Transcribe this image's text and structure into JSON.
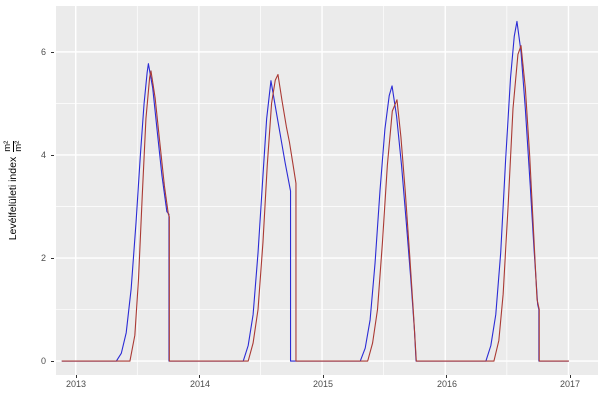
{
  "figure": {
    "background": "#ffffff",
    "panel_background": "#EBEBEB",
    "grid_color": "#ffffff",
    "tick_label_color": "#4D4D4D",
    "axis_title_color": "#000000"
  },
  "y_axis": {
    "title": "Levélfelületi index",
    "unit_numerator": "m²",
    "unit_denominator": "m²",
    "tick_labels": [
      "6",
      "4",
      "2",
      "0"
    ]
  },
  "x_axis": {
    "tick_labels": [
      "2013",
      "2014",
      "2015",
      "2016",
      "2017"
    ]
  },
  "chart_data": {
    "type": "line",
    "title": "",
    "xlabel": "",
    "ylabel": "Levélfelületi index m²/m²",
    "x_range": [
      2012.84,
      2017.24
    ],
    "y_range": [
      -0.27,
      6.89
    ],
    "grid": {
      "major_x": [
        2013,
        2014,
        2015,
        2016,
        2017
      ],
      "minor_x": [
        2013.5,
        2014.5,
        2015.5,
        2016.5
      ],
      "major_y": [
        0,
        2,
        4,
        6
      ],
      "minor_y": [
        1,
        3,
        5,
        7
      ],
      "legend": "none"
    },
    "x_tick_values": [
      2013,
      2014,
      2015,
      2016,
      2017
    ],
    "y_tick_values": [
      6,
      4,
      2,
      0
    ],
    "series": [
      {
        "name": "blue-series",
        "color": "#2b2bd5",
        "points": [
          [
            2012.89,
            0
          ],
          [
            2013.1,
            0
          ],
          [
            2013.33,
            0
          ],
          [
            2013.37,
            0.15
          ],
          [
            2013.41,
            0.55
          ],
          [
            2013.45,
            1.4
          ],
          [
            2013.49,
            2.7
          ],
          [
            2013.525,
            4.0
          ],
          [
            2013.555,
            5.0
          ],
          [
            2013.58,
            5.6
          ],
          [
            2013.59,
            5.77
          ],
          [
            2013.625,
            5.3
          ],
          [
            2013.66,
            4.5
          ],
          [
            2013.7,
            3.6
          ],
          [
            2013.74,
            2.9
          ],
          [
            2013.757,
            2.85
          ],
          [
            2013.757,
            0
          ],
          [
            2013.9,
            0
          ],
          [
            2014.15,
            0
          ],
          [
            2014.36,
            0
          ],
          [
            2014.4,
            0.3
          ],
          [
            2014.44,
            0.9
          ],
          [
            2014.48,
            2.1
          ],
          [
            2014.52,
            3.6
          ],
          [
            2014.55,
            4.7
          ],
          [
            2014.585,
            5.44
          ],
          [
            2014.62,
            4.95
          ],
          [
            2014.66,
            4.4
          ],
          [
            2014.7,
            3.85
          ],
          [
            2014.744,
            3.3
          ],
          [
            2014.744,
            0
          ],
          [
            2014.9,
            0
          ],
          [
            2015.15,
            0
          ],
          [
            2015.31,
            0
          ],
          [
            2015.35,
            0.25
          ],
          [
            2015.39,
            0.8
          ],
          [
            2015.43,
            1.9
          ],
          [
            2015.47,
            3.3
          ],
          [
            2015.51,
            4.5
          ],
          [
            2015.545,
            5.15
          ],
          [
            2015.568,
            5.34
          ],
          [
            2015.605,
            4.75
          ],
          [
            2015.645,
            3.8
          ],
          [
            2015.685,
            2.65
          ],
          [
            2015.72,
            1.6
          ],
          [
            2015.75,
            0.6
          ],
          [
            2015.763,
            0
          ],
          [
            2015.9,
            0
          ],
          [
            2016.15,
            0
          ],
          [
            2016.33,
            0
          ],
          [
            2016.37,
            0.3
          ],
          [
            2016.41,
            0.9
          ],
          [
            2016.45,
            2.1
          ],
          [
            2016.49,
            3.9
          ],
          [
            2016.53,
            5.5
          ],
          [
            2016.56,
            6.3
          ],
          [
            2016.582,
            6.59
          ],
          [
            2016.615,
            6.0
          ],
          [
            2016.65,
            4.9
          ],
          [
            2016.69,
            3.4
          ],
          [
            2016.72,
            2.2
          ],
          [
            2016.75,
            1.1
          ],
          [
            2016.76,
            1.0
          ],
          [
            2016.76,
            0
          ],
          [
            2016.9,
            0
          ],
          [
            2017.0,
            0
          ]
        ]
      },
      {
        "name": "red-series",
        "color": "#aa3a34",
        "points": [
          [
            2012.89,
            0
          ],
          [
            2013.1,
            0
          ],
          [
            2013.44,
            0
          ],
          [
            2013.48,
            0.5
          ],
          [
            2013.51,
            1.6
          ],
          [
            2013.54,
            3.2
          ],
          [
            2013.57,
            4.7
          ],
          [
            2013.6,
            5.5
          ],
          [
            2013.611,
            5.63
          ],
          [
            2013.645,
            5.1
          ],
          [
            2013.68,
            4.3
          ],
          [
            2013.72,
            3.4
          ],
          [
            2013.752,
            2.85
          ],
          [
            2013.76,
            2.8
          ],
          [
            2013.76,
            0
          ],
          [
            2013.9,
            0
          ],
          [
            2014.15,
            0
          ],
          [
            2014.4,
            0
          ],
          [
            2014.44,
            0.35
          ],
          [
            2014.48,
            1.0
          ],
          [
            2014.52,
            2.3
          ],
          [
            2014.555,
            3.8
          ],
          [
            2014.59,
            5.0
          ],
          [
            2014.62,
            5.45
          ],
          [
            2014.642,
            5.56
          ],
          [
            2014.675,
            5.05
          ],
          [
            2014.71,
            4.55
          ],
          [
            2014.735,
            4.25
          ],
          [
            2014.765,
            3.8
          ],
          [
            2014.788,
            3.45
          ],
          [
            2014.788,
            0
          ],
          [
            2014.9,
            0
          ],
          [
            2015.15,
            0
          ],
          [
            2015.37,
            0
          ],
          [
            2015.41,
            0.35
          ],
          [
            2015.45,
            1.0
          ],
          [
            2015.49,
            2.3
          ],
          [
            2015.53,
            3.8
          ],
          [
            2015.57,
            4.85
          ],
          [
            2015.608,
            5.07
          ],
          [
            2015.64,
            4.35
          ],
          [
            2015.675,
            3.3
          ],
          [
            2015.71,
            2.1
          ],
          [
            2015.74,
            1.0
          ],
          [
            2015.765,
            0
          ],
          [
            2015.9,
            0
          ],
          [
            2016.15,
            0
          ],
          [
            2016.395,
            0
          ],
          [
            2016.435,
            0.4
          ],
          [
            2016.47,
            1.3
          ],
          [
            2016.51,
            3.0
          ],
          [
            2016.55,
            4.9
          ],
          [
            2016.59,
            5.95
          ],
          [
            2016.615,
            6.12
          ],
          [
            2016.65,
            5.3
          ],
          [
            2016.685,
            4.0
          ],
          [
            2016.715,
            2.6
          ],
          [
            2016.745,
            1.2
          ],
          [
            2016.763,
            1.0
          ],
          [
            2016.763,
            0
          ],
          [
            2016.9,
            0
          ],
          [
            2017.0,
            0
          ]
        ]
      }
    ]
  }
}
